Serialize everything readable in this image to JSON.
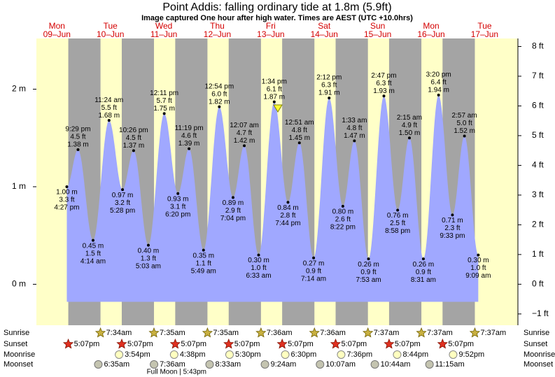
{
  "title": "Point Addis: falling  ordinary tide at 1.8m (5.9ft)",
  "subtitle": "Image captured One hour after high water. Times are AEST (UTC +10.0hrs)",
  "axes": {
    "left": {
      "lim": [
        -0.42,
        2.52
      ],
      "ticks": [
        {
          "value": 0,
          "label": "0 m"
        },
        {
          "value": 1,
          "label": "1 m"
        },
        {
          "value": 2,
          "label": "2 m"
        }
      ]
    },
    "right": {
      "lim": [
        -1.38,
        8.27
      ],
      "ticks": [
        {
          "value": -1,
          "label": "−1 ft"
        },
        {
          "value": 0,
          "label": "0 ft"
        },
        {
          "value": 1,
          "label": "1 ft"
        },
        {
          "value": 2,
          "label": "2 ft"
        },
        {
          "value": 3,
          "label": "3 ft"
        },
        {
          "value": 4,
          "label": "4 ft"
        },
        {
          "value": 5,
          "label": "5 ft"
        },
        {
          "value": 6,
          "label": "6 ft"
        },
        {
          "value": 7,
          "label": "7 ft"
        },
        {
          "value": 8,
          "label": "8 ft"
        }
      ]
    }
  },
  "row_labels": [
    "Sunrise",
    "Sunset",
    "Moonrise",
    "Moonset"
  ],
  "days": [
    {
      "dow": "Mon",
      "date": "09–Jun",
      "sunset": "5:07pm",
      "tides": [
        {
          "time": "4:27 pm",
          "height": 1.0,
          "m": "1.00 m",
          "ft": "3.3 ft"
        },
        {
          "time": "9:29 pm",
          "height": 1.38,
          "m": "1.38 m",
          "ft": "4.5 ft"
        }
      ]
    },
    {
      "dow": "Tue",
      "date": "10–Jun",
      "sunrise": "7:34am",
      "sunset": "5:07pm",
      "moonrise": "3:54pm",
      "moonset": "6:35am",
      "tides": [
        {
          "time": "4:14 am",
          "height": 0.45,
          "m": "0.45 m",
          "ft": "1.5 ft"
        },
        {
          "time": "11:24 am",
          "height": 1.68,
          "m": "1.68 m",
          "ft": "5.5 ft"
        },
        {
          "time": "5:28 pm",
          "height": 0.97,
          "m": "0.97 m",
          "ft": "3.2 ft"
        },
        {
          "time": "10:26 pm",
          "height": 1.37,
          "m": "1.37 m",
          "ft": "4.5 ft"
        }
      ]
    },
    {
      "dow": "Wed",
      "date": "11–Jun",
      "sunrise": "7:35am",
      "sunset": "5:07pm",
      "moonrise": "4:38pm",
      "moonset": "7:36am",
      "tides": [
        {
          "time": "5:03 am",
          "height": 0.4,
          "m": "0.40 m",
          "ft": "1.3 ft"
        },
        {
          "time": "12:11 pm",
          "height": 1.75,
          "m": "1.75 m",
          "ft": "5.7 ft"
        },
        {
          "time": "6:20 pm",
          "height": 0.93,
          "m": "0.93 m",
          "ft": "3.1 ft"
        },
        {
          "time": "11:19 pm",
          "height": 1.39,
          "m": "1.39 m",
          "ft": "4.6 ft"
        }
      ]
    },
    {
      "dow": "Thu",
      "date": "12–Jun",
      "sunrise": "7:35am",
      "sunset": "5:07pm",
      "moonrise": "5:30pm",
      "moonset": "8:33am",
      "tides": [
        {
          "time": "5:49 am",
          "height": 0.35,
          "m": "0.35 m",
          "ft": "1.1 ft"
        },
        {
          "time": "12:54 pm",
          "height": 1.82,
          "m": "1.82 m",
          "ft": "6.0 ft"
        },
        {
          "time": "7:04 pm",
          "height": 0.89,
          "m": "0.89 m",
          "ft": "2.9 ft"
        }
      ]
    },
    {
      "dow": "Fri",
      "date": "13–Jun",
      "sunrise": "7:36am",
      "sunset": "5:07pm",
      "moonrise": "6:30pm",
      "moonset": "9:24am",
      "tides": [
        {
          "time": "12:07 am",
          "height": 1.42,
          "m": "1.42 m",
          "ft": "4.7 ft"
        },
        {
          "time": "6:33 am",
          "height": 0.3,
          "m": "0.30 m",
          "ft": "1.0 ft"
        },
        {
          "time": "1:34 pm",
          "height": 1.87,
          "m": "1.87 m",
          "ft": "6.1 ft"
        },
        {
          "time": "7:44 pm",
          "height": 0.84,
          "m": "0.84 m",
          "ft": "2.8 ft"
        }
      ]
    },
    {
      "dow": "Sat",
      "date": "14–Jun",
      "sunrise": "7:36am",
      "sunset": "5:07pm",
      "moonrise": "7:36pm",
      "moonset": "10:07am",
      "tides": [
        {
          "time": "12:51 am",
          "height": 1.45,
          "m": "1.45 m",
          "ft": "4.8 ft"
        },
        {
          "time": "7:14 am",
          "height": 0.27,
          "m": "0.27 m",
          "ft": "0.9 ft"
        },
        {
          "time": "2:12 pm",
          "height": 1.91,
          "m": "1.91 m",
          "ft": "6.3 ft"
        },
        {
          "time": "8:22 pm",
          "height": 0.8,
          "m": "0.80 m",
          "ft": "2.6 ft"
        }
      ]
    },
    {
      "dow": "Sun",
      "date": "15–Jun",
      "sunrise": "7:37am",
      "sunset": "5:07pm",
      "moonrise": "8:44pm",
      "moonset": "10:44am",
      "tides": [
        {
          "time": "1:33 am",
          "height": 1.47,
          "m": "1.47 m",
          "ft": "4.8 ft"
        },
        {
          "time": "7:53 am",
          "height": 0.26,
          "m": "0.26 m",
          "ft": "0.9 ft"
        },
        {
          "time": "2:47 pm",
          "height": 1.93,
          "m": "1.93 m",
          "ft": "6.3 ft"
        },
        {
          "time": "8:58 pm",
          "height": 0.76,
          "m": "0.76 m",
          "ft": "2.5 ft"
        }
      ]
    },
    {
      "dow": "Mon",
      "date": "16–Jun",
      "sunrise": "7:37am",
      "sunset": "5:07pm",
      "moonrise": "9:52pm",
      "moonset": "11:15am",
      "tides": [
        {
          "time": "2:15 am",
          "height": 1.5,
          "m": "1.50 m",
          "ft": "4.9 ft"
        },
        {
          "time": "8:31 am",
          "height": 0.26,
          "m": "0.26 m",
          "ft": "0.9 ft"
        },
        {
          "time": "3:20 pm",
          "height": 1.94,
          "m": "1.94 m",
          "ft": "6.4 ft"
        },
        {
          "time": "9:33 pm",
          "height": 0.71,
          "m": "0.71 m",
          "ft": "2.3 ft"
        }
      ]
    },
    {
      "dow": "Tue",
      "date": "17–Jun",
      "sunrise": "7:37am",
      "tides": [
        {
          "time": "2:57 am",
          "height": 1.52,
          "m": "1.52 m",
          "ft": "5.0 ft"
        },
        {
          "time": "9:09 am",
          "height": 0.3,
          "m": "0.30 m",
          "ft": "1.0 ft"
        }
      ]
    }
  ],
  "full_moon": {
    "day": "Wed",
    "text": "Full Moon | 5:43pm"
  }
}
